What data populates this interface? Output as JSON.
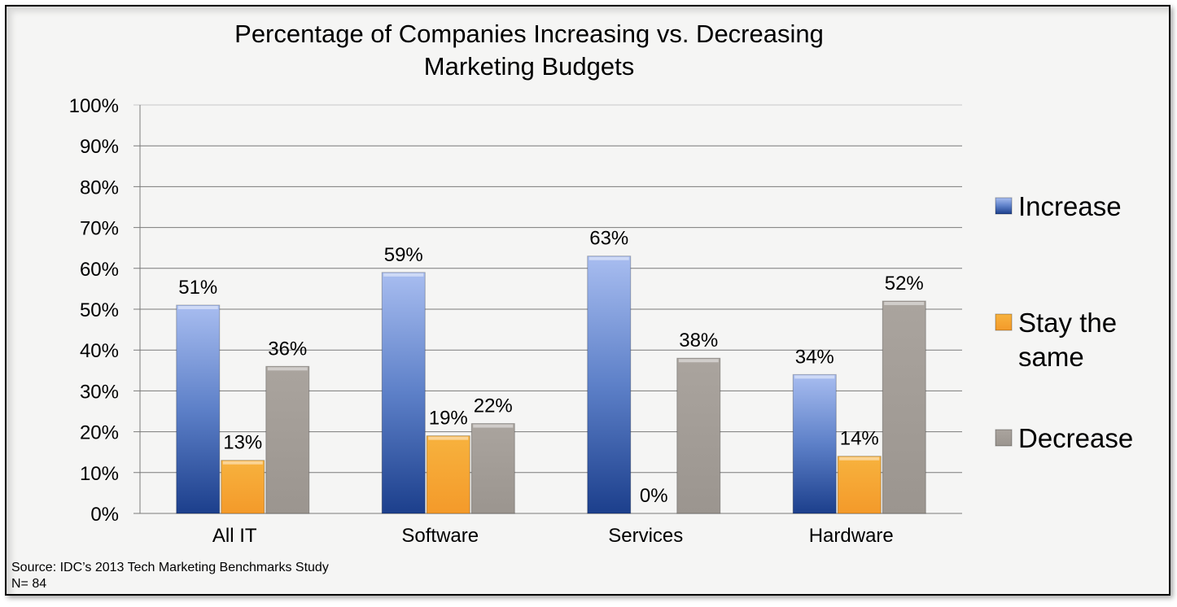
{
  "chart_data": {
    "type": "bar",
    "title": "Percentage of Companies Increasing vs. Decreasing Marketing Budgets",
    "title_lines": [
      "Percentage of Companies Increasing vs. Decreasing",
      "Marketing Budgets"
    ],
    "categories": [
      "All IT",
      "Software",
      "Services",
      "Hardware"
    ],
    "series": [
      {
        "name": "Increase",
        "values": [
          51,
          59,
          63,
          34
        ],
        "labels": [
          "51%",
          "59%",
          "63%",
          "34%"
        ],
        "color": "#3a5fa8"
      },
      {
        "name": "Stay the same",
        "values": [
          13,
          19,
          0,
          14
        ],
        "labels": [
          "13%",
          "19%",
          "0%",
          "14%"
        ],
        "color": "#f4a02c"
      },
      {
        "name": "Decrease",
        "values": [
          36,
          22,
          38,
          52
        ],
        "labels": [
          "36%",
          "22%",
          "38%",
          "52%"
        ],
        "color": "#a09a94"
      }
    ],
    "legend_labels": [
      "Increase",
      "Stay the",
      "same",
      "Decrease"
    ],
    "yticks": [
      "0%",
      "10%",
      "20%",
      "30%",
      "40%",
      "50%",
      "60%",
      "70%",
      "80%",
      "90%",
      "100%"
    ],
    "ylim": [
      0,
      100
    ],
    "xlabel": "",
    "ylabel": "",
    "grid": true,
    "legend_position": "right"
  },
  "footer": {
    "source": "Source: IDC’s 2013 Tech Marketing Benchmarks Study",
    "n": "N= 84"
  }
}
